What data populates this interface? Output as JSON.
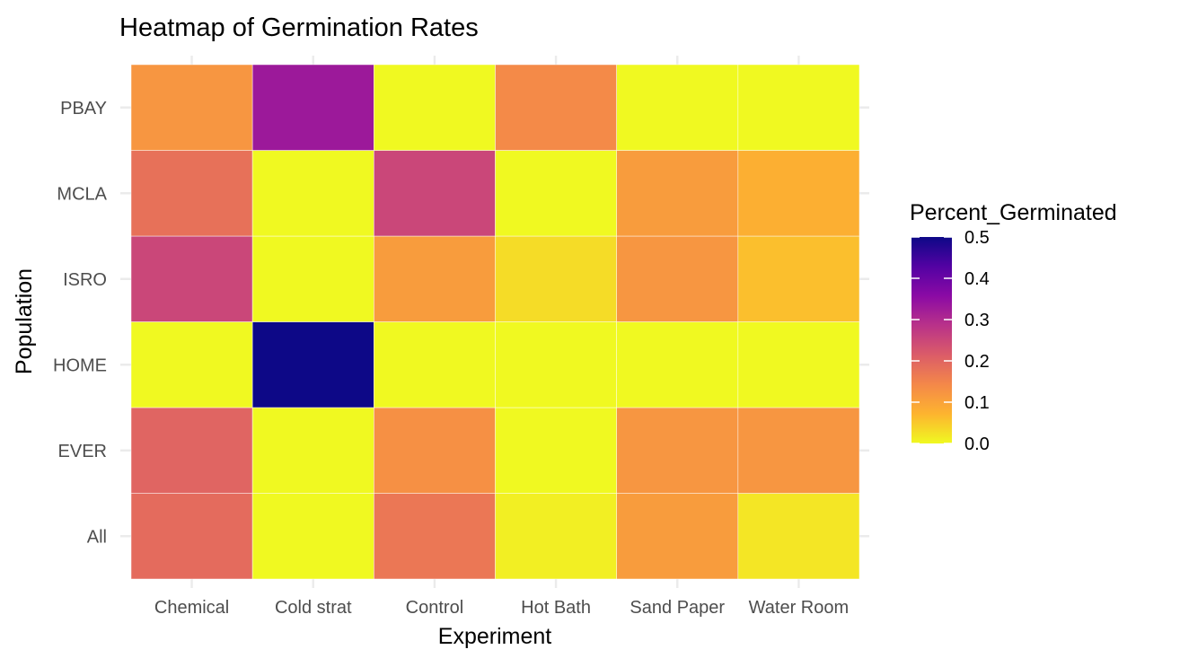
{
  "chart_data": {
    "type": "heatmap",
    "title": "Heatmap of Germination Rates",
    "xlabel": "Experiment",
    "ylabel": "Population",
    "x_categories": [
      "Chemical",
      "Cold strat",
      "Control",
      "Hot Bath",
      "Sand Paper",
      "Water Room"
    ],
    "y_categories": [
      "All",
      "EVER",
      "HOME",
      "ISRO",
      "MCLA",
      "PBAY"
    ],
    "values": [
      [
        0.19,
        0.0,
        0.17,
        0.01,
        0.11,
        0.02
      ],
      [
        0.2,
        0.0,
        0.13,
        0.0,
        0.12,
        0.12
      ],
      [
        0.0,
        0.5,
        0.0,
        0.0,
        0.0,
        0.0
      ],
      [
        0.25,
        0.0,
        0.11,
        0.03,
        0.12,
        0.06
      ],
      [
        0.18,
        0.0,
        0.25,
        0.0,
        0.11,
        0.08
      ],
      [
        0.12,
        0.33,
        0.0,
        0.14,
        0.0,
        0.0
      ]
    ],
    "legend": {
      "title": "Percent_Germinated",
      "ticks": [
        "0.0",
        "0.1",
        "0.2",
        "0.3",
        "0.4",
        "0.5"
      ],
      "range": [
        0,
        0.5
      ],
      "position": "right"
    },
    "colorscale": {
      "name": "plasma",
      "stops": [
        "#f0f921",
        "#fdb42f",
        "#f48849",
        "#db5c68",
        "#b93289",
        "#8b0aa5",
        "#5302a3",
        "#0d0887"
      ]
    },
    "grid": true
  }
}
